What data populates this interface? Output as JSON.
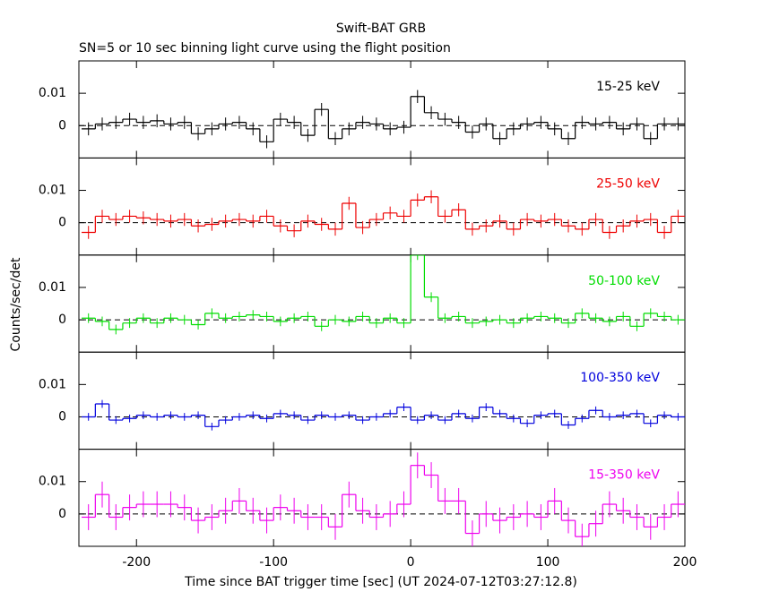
{
  "chart_data": {
    "type": "histogram",
    "title": "Swift-BAT GRB",
    "subtitle": "SN=5 or 10 sec binning light curve using the flight position",
    "xlabel": "Time since BAT trigger time [sec] (UT 2024-07-12T03:27:12.8)",
    "ylabel": "Counts/sec/det",
    "xlim": [
      -242,
      200
    ],
    "xticks": [
      -200,
      -100,
      0,
      100,
      200
    ],
    "ylim": [
      -0.01,
      0.02
    ],
    "yticks": [
      0,
      0.01
    ],
    "bins": [
      -240,
      -230,
      -220,
      -210,
      -200,
      -190,
      -180,
      -170,
      -160,
      -150,
      -140,
      -130,
      -120,
      -110,
      -100,
      -90,
      -80,
      -70,
      -60,
      -50,
      -40,
      -30,
      -20,
      -10,
      0,
      10,
      20,
      30,
      40,
      50,
      60,
      70,
      80,
      90,
      100,
      110,
      120,
      130,
      140,
      150,
      160,
      170,
      180,
      190,
      200
    ],
    "series": [
      {
        "name": "15-25 keV",
        "color": "#000000",
        "error": 0.002,
        "values": [
          -0.001,
          0.0005,
          0.001,
          0.002,
          0.001,
          0.0015,
          0.0005,
          0.001,
          -0.0025,
          -0.001,
          0.0005,
          0.001,
          -0.001,
          -0.005,
          0.002,
          0.001,
          -0.003,
          0.005,
          -0.004,
          -0.001,
          0.001,
          0.0005,
          -0.001,
          -0.0005,
          0.009,
          0.004,
          0.002,
          0.001,
          -0.002,
          0.0005,
          -0.004,
          -0.001,
          0.0005,
          0.001,
          -0.001,
          -0.004,
          0.001,
          0.0005,
          0.001,
          -0.001,
          0.0005,
          -0.004,
          0.0005,
          0.0005
        ]
      },
      {
        "name": "25-50 keV",
        "color": "#ee0000",
        "error": 0.002,
        "values": [
          -0.003,
          0.002,
          0.001,
          0.002,
          0.0015,
          0.001,
          0.0005,
          0.001,
          -0.001,
          -0.0005,
          0.0005,
          0.001,
          0.0005,
          0.002,
          -0.001,
          -0.0025,
          0.0005,
          -0.0005,
          -0.002,
          0.006,
          -0.0015,
          0.001,
          0.003,
          0.002,
          0.007,
          0.008,
          0.002,
          0.004,
          -0.002,
          -0.001,
          0.0005,
          -0.002,
          0.001,
          0.0005,
          0.001,
          -0.001,
          -0.002,
          0.001,
          -0.003,
          -0.001,
          0.0005,
          0.001,
          -0.003,
          0.002
        ]
      },
      {
        "name": "50-100 keV",
        "color": "#00dd00",
        "error": 0.0015,
        "values": [
          0.0005,
          -0.0005,
          -0.003,
          -0.001,
          0.0005,
          -0.001,
          0.0005,
          0,
          -0.0015,
          0.002,
          0.0005,
          0.001,
          0.0015,
          0.001,
          -0.0005,
          0.0005,
          0.001,
          -0.002,
          0,
          -0.0005,
          0.001,
          -0.001,
          0.0005,
          -0.001,
          0.02,
          0.007,
          0.0005,
          0.001,
          -0.001,
          -0.0005,
          0,
          -0.001,
          0.0005,
          0.001,
          0.0005,
          -0.001,
          0.002,
          0.0005,
          -0.0005,
          0.001,
          -0.002,
          0.002,
          0.001,
          0
        ]
      },
      {
        "name": "100-350 keV",
        "color": "#0000dd",
        "error": 0.0012,
        "values": [
          0,
          0.004,
          -0.001,
          -0.0005,
          0.0005,
          0,
          0.0005,
          0,
          0.0005,
          -0.003,
          -0.001,
          0,
          0.0005,
          -0.0005,
          0.001,
          0.0005,
          -0.001,
          0.0005,
          0,
          0.0005,
          -0.001,
          0,
          0.001,
          0.003,
          -0.001,
          0.0005,
          -0.001,
          0.001,
          -0.0005,
          0.003,
          0.001,
          -0.0005,
          -0.002,
          0.0005,
          0.001,
          -0.0025,
          -0.0005,
          0.002,
          0,
          0.0005,
          0.001,
          -0.002,
          0.0005,
          0
        ]
      },
      {
        "name": "15-350 keV",
        "color": "#ee00ee",
        "error": 0.004,
        "values": [
          -0.001,
          0.006,
          -0.001,
          0.002,
          0.003,
          0.003,
          0.003,
          0.002,
          -0.002,
          -0.001,
          0.001,
          0.004,
          0.001,
          -0.002,
          0.002,
          0.001,
          -0.001,
          -0.001,
          -0.004,
          0.006,
          0.001,
          -0.001,
          0,
          0.003,
          0.015,
          0.012,
          0.004,
          0.004,
          -0.006,
          0,
          -0.002,
          -0.001,
          0,
          -0.001,
          0.004,
          -0.002,
          -0.007,
          -0.003,
          0.003,
          0.001,
          -0.001,
          -0.004,
          -0.001,
          0.003
        ]
      }
    ]
  }
}
